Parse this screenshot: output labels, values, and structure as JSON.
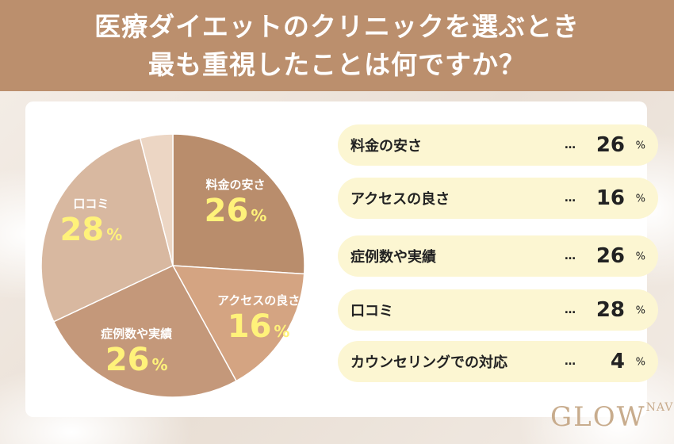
{
  "header": {
    "title_line1": "医療ダイエットのクリニックを選ぶとき",
    "title_line2": "最も重視したことは何ですか？"
  },
  "chart_data": {
    "type": "pie",
    "unit": "%",
    "categories": [
      "料金の安さ",
      "アクセスの良さ",
      "症例数や実績",
      "口コミ",
      "カウンセリングでの対応"
    ],
    "values": [
      26,
      16,
      26,
      28,
      4
    ],
    "colors": [
      "#b98d6c",
      "#d4a482",
      "#c4987a",
      "#d8b8a0",
      "#ecd6c4"
    ],
    "ellipsis": "…"
  },
  "logo": {
    "main": "GLOW",
    "small": "NAVI"
  },
  "colors": {
    "header_bg": "#bb8f6d",
    "pill_bg": "#fcf6d2",
    "pct_highlight": "#fff27a"
  }
}
